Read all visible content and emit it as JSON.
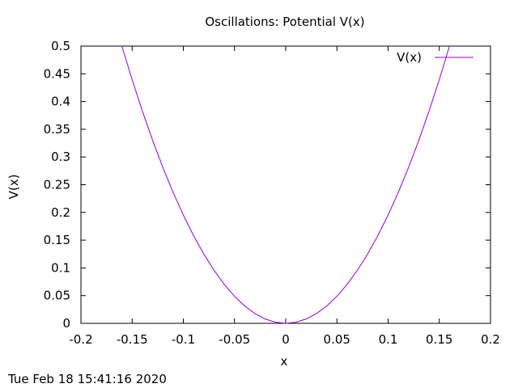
{
  "chart_data": {
    "type": "line",
    "title": "Oscillations: Potential V(x)",
    "xlabel": "x",
    "ylabel": "V(x)",
    "xlim": [
      -0.2,
      0.2
    ],
    "ylim": [
      0,
      0.5
    ],
    "xticks": [
      -0.2,
      -0.15,
      -0.1,
      -0.05,
      0,
      0.05,
      0.1,
      0.15,
      0.2
    ],
    "xtick_labels": [
      "-0.2",
      "-0.15",
      "-0.1",
      "-0.05",
      "0",
      "0.05",
      "0.1",
      "0.15",
      "0.2"
    ],
    "yticks": [
      0,
      0.05,
      0.1,
      0.15,
      0.2,
      0.25,
      0.3,
      0.35,
      0.4,
      0.45,
      0.5
    ],
    "ytick_labels": [
      "0",
      "0.05",
      "0.1",
      "0.15",
      "0.2",
      "0.25",
      "0.3",
      "0.35",
      "0.4",
      "0.45",
      "0.5"
    ],
    "grid": false,
    "legend_position": "top-right",
    "series": [
      {
        "name": "V(x)",
        "color": "#9400d3",
        "x": [
          -0.16,
          -0.15,
          -0.14,
          -0.13,
          -0.12,
          -0.11,
          -0.1,
          -0.09,
          -0.08,
          -0.07,
          -0.06,
          -0.05,
          -0.04,
          -0.03,
          -0.02,
          -0.01,
          0,
          0.01,
          0.02,
          0.03,
          0.04,
          0.05,
          0.06,
          0.07,
          0.08,
          0.09,
          0.1,
          0.11,
          0.12,
          0.13,
          0.14,
          0.15,
          0.16
        ],
        "y": [
          0.5,
          0.4395,
          0.3828,
          0.3301,
          0.2812,
          0.2363,
          0.1953,
          0.1582,
          0.125,
          0.0957,
          0.0703,
          0.0488,
          0.0312,
          0.0176,
          0.0078,
          0.002,
          0,
          0.002,
          0.0078,
          0.0176,
          0.0312,
          0.0488,
          0.0703,
          0.0957,
          0.125,
          0.1582,
          0.1953,
          0.2363,
          0.2812,
          0.3301,
          0.3828,
          0.4395,
          0.5
        ]
      }
    ]
  },
  "timestamp": "Tue Feb 18 15:41:16 2020"
}
